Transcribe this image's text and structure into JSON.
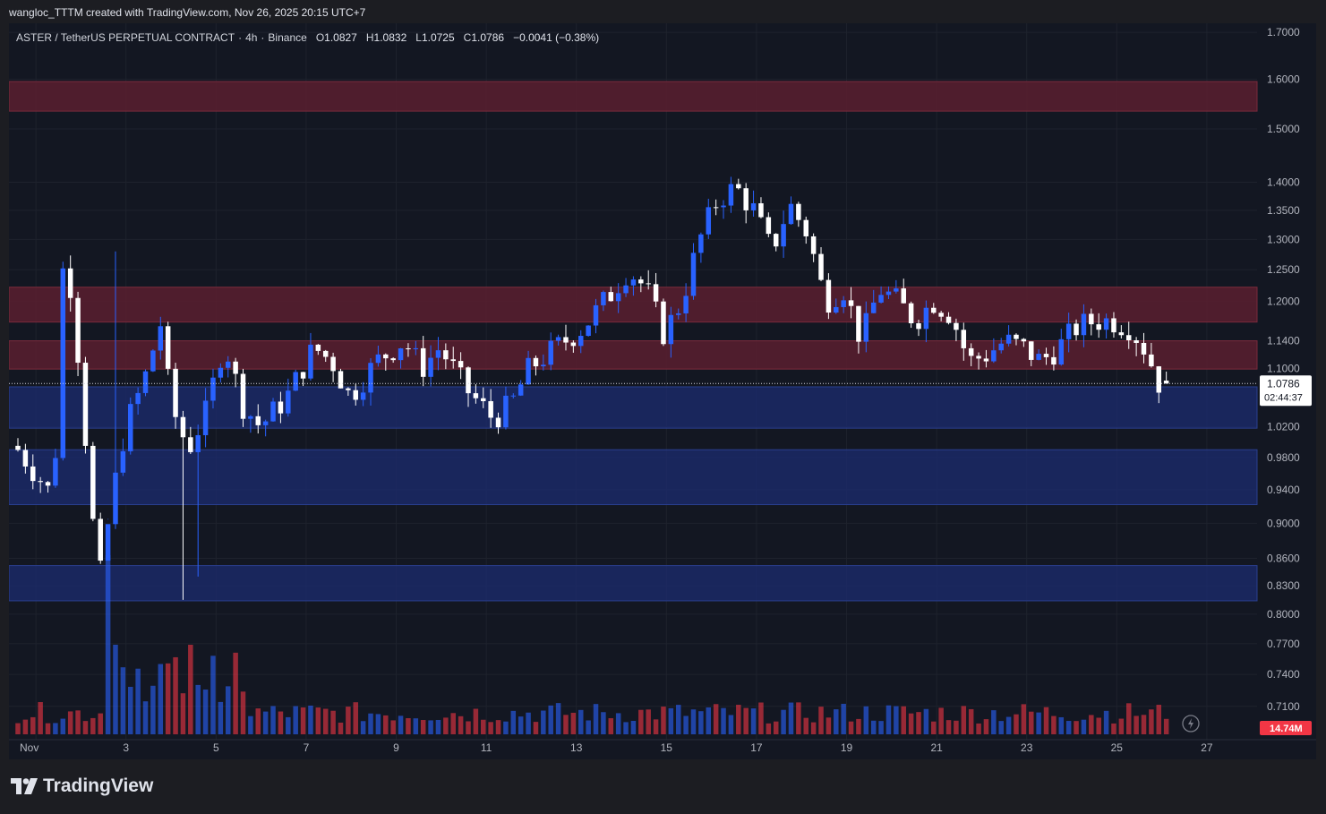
{
  "header": {
    "credit": "wangloc_TTTM created with TradingView.com, Nov 26, 2025 20:15 UTC+7"
  },
  "legend": {
    "symbol": "ASTER / TetherUS PERPETUAL CONTRACT",
    "interval": "4h",
    "exchange": "Binance",
    "o_label": "O",
    "o_value": "1.0827",
    "h_label": "H",
    "h_value": "1.0832",
    "l_label": "L",
    "l_value": "1.0725",
    "c_label": "C",
    "c_value": "1.0786",
    "change": "−0.0041 (−0.38%)"
  },
  "brand": {
    "name": "TradingView"
  },
  "colors": {
    "background": "#131722",
    "bull": "#2962ff",
    "bear": "#ffffff",
    "vol_bull": "#2962ff",
    "vol_bear": "#f23645",
    "supply_zone": "#5b1f2f",
    "demand_zone": "#1b2b6b"
  },
  "chart_data": {
    "type": "candlestick",
    "price_axis": {
      "scale": "log",
      "range": [
        0.68,
        1.72
      ],
      "ticks": [
        "1.7000",
        "1.6000",
        "1.5000",
        "1.4000",
        "1.3500",
        "1.3000",
        "1.2500",
        "1.2000",
        "1.1400",
        "1.1000",
        "1.0200",
        "0.9800",
        "0.9400",
        "0.9000",
        "0.8600",
        "0.8300",
        "0.8000",
        "0.7700",
        "0.7400",
        "0.7100"
      ]
    },
    "time_axis": {
      "labels": [
        "Nov",
        "3",
        "5",
        "7",
        "9",
        "11",
        "13",
        "15",
        "17",
        "19",
        "21",
        "23",
        "25",
        "27"
      ],
      "label_day": [
        1,
        3,
        5,
        7,
        9,
        11,
        13,
        15,
        17,
        19,
        21,
        23,
        25,
        27
      ]
    },
    "current_price": {
      "label": "1.0786",
      "countdown": "02:44:37",
      "value": 1.0786
    },
    "volume_label": "14.74M",
    "zones": [
      {
        "kind": "supply",
        "from": 1.535,
        "to": 1.595
      },
      {
        "kind": "supply",
        "from": 1.168,
        "to": 1.222
      },
      {
        "kind": "supply",
        "from": 1.099,
        "to": 1.14
      },
      {
        "kind": "demand",
        "from": 1.018,
        "to": 1.074
      },
      {
        "kind": "demand",
        "from": 0.922,
        "to": 0.99
      },
      {
        "kind": "demand",
        "from": 0.814,
        "to": 0.852
      }
    ],
    "path": [
      [
        0,
        0.99
      ],
      [
        2,
        0.96
      ],
      [
        4,
        0.93
      ],
      [
        5,
        1.25
      ],
      [
        6,
        1.22
      ],
      [
        8,
        0.94
      ],
      [
        9,
        0.83
      ],
      [
        11,
        0.96
      ],
      [
        12,
        1.02
      ],
      [
        14,
        1.08
      ],
      [
        16,
        1.17
      ],
      [
        17,
        1.05
      ],
      [
        19,
        0.99
      ],
      [
        21,
        1.04
      ],
      [
        23,
        1.14
      ],
      [
        25,
        1.05
      ],
      [
        27,
        1.02
      ],
      [
        30,
        1.06
      ],
      [
        33,
        1.13
      ],
      [
        35,
        1.11
      ],
      [
        37,
        1.06
      ],
      [
        40,
        1.11
      ],
      [
        43,
        1.14
      ],
      [
        45,
        1.1
      ],
      [
        47,
        1.13
      ],
      [
        50,
        1.07
      ],
      [
        53,
        1.03
      ],
      [
        55,
        1.05
      ],
      [
        57,
        1.1
      ],
      [
        60,
        1.13
      ],
      [
        63,
        1.16
      ],
      [
        66,
        1.21
      ],
      [
        68,
        1.25
      ],
      [
        70,
        1.22
      ],
      [
        72,
        1.15
      ],
      [
        74,
        1.2
      ],
      [
        76,
        1.3
      ],
      [
        78,
        1.37
      ],
      [
        80,
        1.39
      ],
      [
        82,
        1.35
      ],
      [
        84,
        1.28
      ],
      [
        86,
        1.36
      ],
      [
        88,
        1.31
      ],
      [
        90,
        1.2
      ],
      [
        92,
        1.22
      ],
      [
        94,
        1.14
      ],
      [
        96,
        1.22
      ],
      [
        98,
        1.2
      ],
      [
        100,
        1.17
      ],
      [
        102,
        1.2
      ],
      [
        104,
        1.18
      ],
      [
        106,
        1.11
      ],
      [
        108,
        1.12
      ],
      [
        110,
        1.14
      ],
      [
        112,
        1.13
      ],
      [
        114,
        1.11
      ],
      [
        116,
        1.13
      ],
      [
        118,
        1.16
      ],
      [
        120,
        1.17
      ],
      [
        122,
        1.17
      ],
      [
        124,
        1.16
      ],
      [
        126,
        1.12
      ],
      [
        127,
        1.08
      ],
      [
        128,
        1.0786
      ]
    ]
  }
}
